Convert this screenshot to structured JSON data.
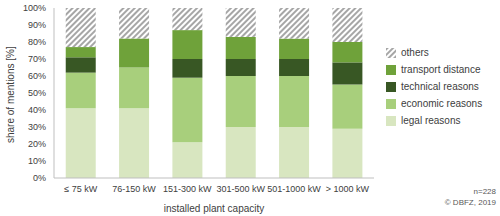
{
  "chart_data": {
    "type": "bar",
    "stacked": true,
    "grid": false,
    "legend": "right",
    "ylabel": "share of mentions [%]",
    "xlabel": "installed plant capacity",
    "annotations": [
      "n=228",
      "© DBFZ, 2019"
    ],
    "categories": [
      "≤ 75 kW",
      "76-150 kW",
      "151-300 kW",
      "301-500 kW",
      "501-1000 kW",
      "> 1000 kW"
    ],
    "ylim": [
      0,
      100
    ],
    "yticks": [
      {
        "value": 0,
        "label": "0%"
      },
      {
        "value": 10,
        "label": "10%"
      },
      {
        "value": 20,
        "label": "20%"
      },
      {
        "value": 30,
        "label": "30%"
      },
      {
        "value": 40,
        "label": "40%"
      },
      {
        "value": 50,
        "label": "50%"
      },
      {
        "value": 60,
        "label": "60%"
      },
      {
        "value": 70,
        "label": "70%"
      },
      {
        "value": 80,
        "label": "80%"
      },
      {
        "value": 90,
        "label": "90%"
      },
      {
        "value": 100,
        "label": "100%"
      }
    ],
    "series": [
      {
        "name": "legal reasons",
        "color": "#d8e6c0",
        "values": [
          41,
          41,
          21,
          30,
          30,
          29
        ]
      },
      {
        "name": "economic reasons",
        "color": "#a8cf7c",
        "values": [
          21,
          24,
          38,
          30,
          30,
          26
        ]
      },
      {
        "name": "technical reasons",
        "color": "#385724",
        "values": [
          9,
          0,
          11,
          10,
          10,
          13
        ]
      },
      {
        "name": "transport distance",
        "color": "#6fa23a",
        "values": [
          6,
          17,
          17,
          13,
          12,
          12
        ]
      },
      {
        "name": "others",
        "color": "#a6a6a6",
        "values": [
          23,
          18,
          13,
          17,
          18,
          20
        ]
      }
    ]
  }
}
